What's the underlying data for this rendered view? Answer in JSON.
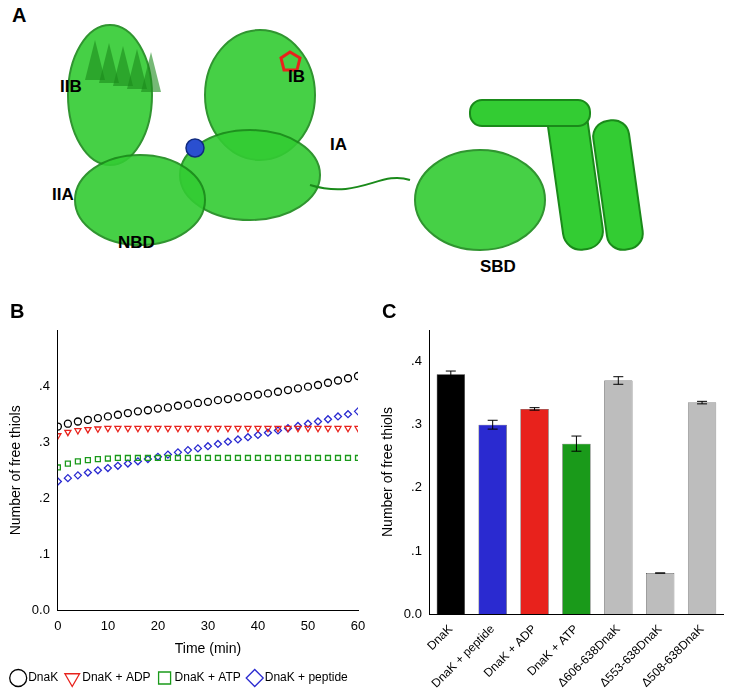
{
  "panel_labels": [
    "A",
    "B",
    "C"
  ],
  "structure": {
    "domain_labels": [
      "IIB",
      "IB",
      "IA",
      "IIA",
      "NBD",
      "SBD"
    ]
  },
  "chart_data": [
    {
      "type": "scatter",
      "x_label": "Time (min)",
      "y_label": "Number of free thiols",
      "x": [
        0,
        2,
        4,
        6,
        8,
        10,
        12,
        14,
        16,
        18,
        20,
        22,
        24,
        26,
        28,
        30,
        32,
        34,
        36,
        38,
        40,
        42,
        44,
        46,
        48,
        50,
        52,
        54,
        56,
        58,
        60
      ],
      "series": [
        {
          "name": "DnaK",
          "color": "#000000",
          "marker": "circle",
          "values": [
            0.328,
            0.333,
            0.337,
            0.34,
            0.343,
            0.346,
            0.349,
            0.352,
            0.355,
            0.357,
            0.36,
            0.362,
            0.365,
            0.367,
            0.37,
            0.372,
            0.375,
            0.377,
            0.38,
            0.382,
            0.385,
            0.387,
            0.39,
            0.393,
            0.396,
            0.399,
            0.402,
            0.406,
            0.41,
            0.414,
            0.418
          ]
        },
        {
          "name": "DnaK + ADP",
          "color": "#e8221c",
          "marker": "triangle_down",
          "values": [
            0.312,
            0.318,
            0.321,
            0.323,
            0.324,
            0.325,
            0.325,
            0.325,
            0.325,
            0.325,
            0.325,
            0.325,
            0.325,
            0.325,
            0.325,
            0.325,
            0.325,
            0.325,
            0.325,
            0.325,
            0.325,
            0.325,
            0.325,
            0.325,
            0.325,
            0.325,
            0.325,
            0.325,
            0.325,
            0.325,
            0.325
          ]
        },
        {
          "name": "DnaK + ATP",
          "color": "#1a9a1a",
          "marker": "square",
          "values": [
            0.255,
            0.262,
            0.266,
            0.268,
            0.27,
            0.271,
            0.272,
            0.272,
            0.272,
            0.272,
            0.272,
            0.272,
            0.272,
            0.272,
            0.272,
            0.272,
            0.272,
            0.272,
            0.272,
            0.272,
            0.272,
            0.272,
            0.272,
            0.272,
            0.272,
            0.272,
            0.272,
            0.272,
            0.272,
            0.272,
            0.272
          ]
        },
        {
          "name": "DnaK + peptide",
          "color": "#2a2ad0",
          "marker": "diamond",
          "values": [
            0.23,
            0.236,
            0.241,
            0.246,
            0.25,
            0.254,
            0.258,
            0.262,
            0.266,
            0.27,
            0.274,
            0.278,
            0.282,
            0.286,
            0.289,
            0.293,
            0.297,
            0.301,
            0.305,
            0.309,
            0.313,
            0.317,
            0.321,
            0.325,
            0.329,
            0.333,
            0.337,
            0.341,
            0.346,
            0.35,
            0.355
          ]
        }
      ],
      "xlim": [
        0,
        60
      ],
      "xticks": [
        0,
        10,
        20,
        30,
        40,
        50,
        60
      ],
      "ylim": [
        0,
        0.5
      ],
      "yticks": [
        {
          "value": 0,
          "label": "0.0"
        },
        {
          "value": 0.1,
          "label": ".1"
        },
        {
          "value": 0.2,
          "label": ".2"
        },
        {
          "value": 0.3,
          "label": ".3"
        },
        {
          "value": 0.4,
          "label": ".4"
        }
      ],
      "grid": false,
      "legend": "bottom"
    },
    {
      "type": "bar",
      "y_label": "Number of free thiols",
      "categories": [
        "DnaK",
        "DnaK + peptide",
        "DnaK + ADP",
        "DnaK + ATP",
        "Δ606-638DnaK",
        "Δ553-638DnaK",
        "Δ508-638DnaK"
      ],
      "values": [
        0.38,
        0.3,
        0.325,
        0.27,
        0.37,
        0.065,
        0.335
      ],
      "errors": [
        0.005,
        0.007,
        0.002,
        0.012,
        0.006,
        0,
        0.002
      ],
      "colors": [
        "#000000",
        "#2a2ad0",
        "#e8221c",
        "#1a9a1a",
        "#bdbdbd",
        "#bdbdbd",
        "#bdbdbd"
      ],
      "ylim": [
        0,
        0.45
      ],
      "yticks": [
        {
          "value": 0,
          "label": "0.0"
        },
        {
          "value": 0.1,
          "label": ".1"
        },
        {
          "value": 0.2,
          "label": ".2"
        },
        {
          "value": 0.3,
          "label": ".3"
        },
        {
          "value": 0.4,
          "label": ".4"
        }
      ],
      "grid": false
    }
  ]
}
